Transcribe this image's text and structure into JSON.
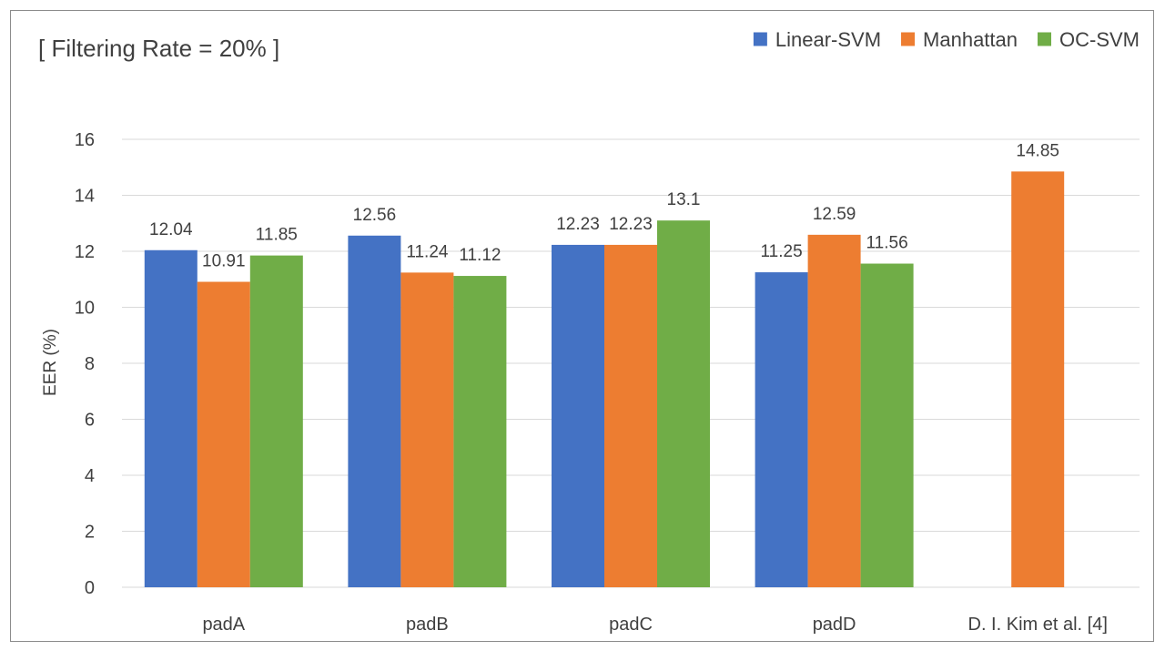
{
  "chart_data": {
    "type": "bar",
    "title": "[ Filtering Rate = 20% ]",
    "xlabel": "",
    "ylabel": "EER (%)",
    "ylim": [
      0,
      16
    ],
    "yticks": [
      0,
      2,
      4,
      6,
      8,
      10,
      12,
      14,
      16
    ],
    "categories": [
      "padA",
      "padB",
      "padC",
      "padD",
      "D. I. Kim et al. [4]"
    ],
    "series": [
      {
        "name": "Linear-SVM",
        "color": "#4472C4",
        "values": [
          12.04,
          12.56,
          12.23,
          11.25,
          null
        ],
        "labels": [
          "12.04",
          "12.56",
          "12.23",
          "11.25",
          null
        ]
      },
      {
        "name": "Manhattan",
        "color": "#ED7D31",
        "values": [
          10.91,
          11.24,
          12.23,
          12.59,
          14.85
        ],
        "labels": [
          "10.91",
          "11.24",
          "12.23",
          "12.59",
          "14.85"
        ]
      },
      {
        "name": "OC-SVM",
        "color": "#70AD47",
        "values": [
          11.85,
          11.12,
          13.1,
          11.56,
          null
        ],
        "labels": [
          "11.85",
          "11.12",
          "13.1",
          "11.56",
          null
        ]
      }
    ],
    "legend_position": "top-right",
    "grid": true
  }
}
